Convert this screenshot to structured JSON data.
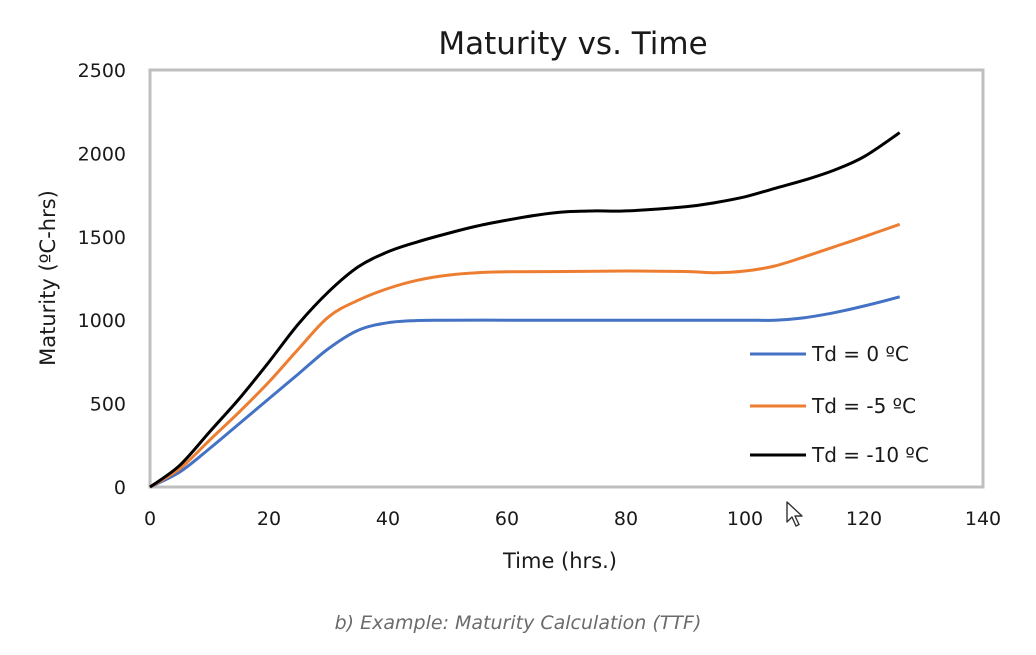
{
  "caption": "b) Example: Maturity Calculation (TTF)",
  "icons": {
    "cursor": "mouse-pointer-icon"
  },
  "chart_data": {
    "type": "line",
    "title": "Maturity vs. Time",
    "xlabel": "Time (hrs.)",
    "ylabel": "Maturity (ºC-hrs)",
    "xlim": [
      0,
      140
    ],
    "ylim": [
      0,
      2500
    ],
    "xticks": [
      "0",
      "20",
      "40",
      "60",
      "80",
      "100",
      "120",
      "140"
    ],
    "yticks": [
      "0",
      "500",
      "1000",
      "1500",
      "2000",
      "2500"
    ],
    "grid": false,
    "legend_position": "right",
    "series": [
      {
        "name": "Td = 0 ºC",
        "color": "#4472c4",
        "points": [
          [
            0,
            0
          ],
          [
            5,
            90
          ],
          [
            10,
            230
          ],
          [
            15,
            380
          ],
          [
            20,
            530
          ],
          [
            25,
            680
          ],
          [
            30,
            830
          ],
          [
            35,
            940
          ],
          [
            40,
            985
          ],
          [
            45,
            998
          ],
          [
            50,
            1000
          ],
          [
            60,
            1000
          ],
          [
            70,
            1000
          ],
          [
            80,
            1000
          ],
          [
            90,
            1000
          ],
          [
            100,
            1000
          ],
          [
            105,
            1000
          ],
          [
            110,
            1015
          ],
          [
            115,
            1045
          ],
          [
            120,
            1085
          ],
          [
            126,
            1140
          ]
        ]
      },
      {
        "name": "Td = -5 ºC",
        "color": "#ed7d31",
        "points": [
          [
            0,
            0
          ],
          [
            5,
            110
          ],
          [
            10,
            280
          ],
          [
            15,
            450
          ],
          [
            20,
            630
          ],
          [
            25,
            830
          ],
          [
            30,
            1020
          ],
          [
            35,
            1120
          ],
          [
            40,
            1190
          ],
          [
            45,
            1240
          ],
          [
            50,
            1270
          ],
          [
            55,
            1285
          ],
          [
            60,
            1290
          ],
          [
            70,
            1292
          ],
          [
            80,
            1295
          ],
          [
            90,
            1292
          ],
          [
            95,
            1285
          ],
          [
            100,
            1295
          ],
          [
            105,
            1325
          ],
          [
            110,
            1380
          ],
          [
            115,
            1440
          ],
          [
            120,
            1500
          ],
          [
            126,
            1575
          ]
        ]
      },
      {
        "name": "Td = -10 ºC",
        "color": "#000000",
        "points": [
          [
            0,
            0
          ],
          [
            5,
            130
          ],
          [
            10,
            330
          ],
          [
            15,
            530
          ],
          [
            20,
            750
          ],
          [
            25,
            980
          ],
          [
            30,
            1170
          ],
          [
            35,
            1320
          ],
          [
            40,
            1410
          ],
          [
            45,
            1470
          ],
          [
            50,
            1520
          ],
          [
            55,
            1565
          ],
          [
            60,
            1600
          ],
          [
            65,
            1630
          ],
          [
            70,
            1650
          ],
          [
            75,
            1655
          ],
          [
            80,
            1655
          ],
          [
            90,
            1680
          ],
          [
            95,
            1705
          ],
          [
            100,
            1740
          ],
          [
            105,
            1790
          ],
          [
            110,
            1840
          ],
          [
            115,
            1900
          ],
          [
            120,
            1980
          ],
          [
            126,
            2125
          ]
        ]
      }
    ]
  }
}
